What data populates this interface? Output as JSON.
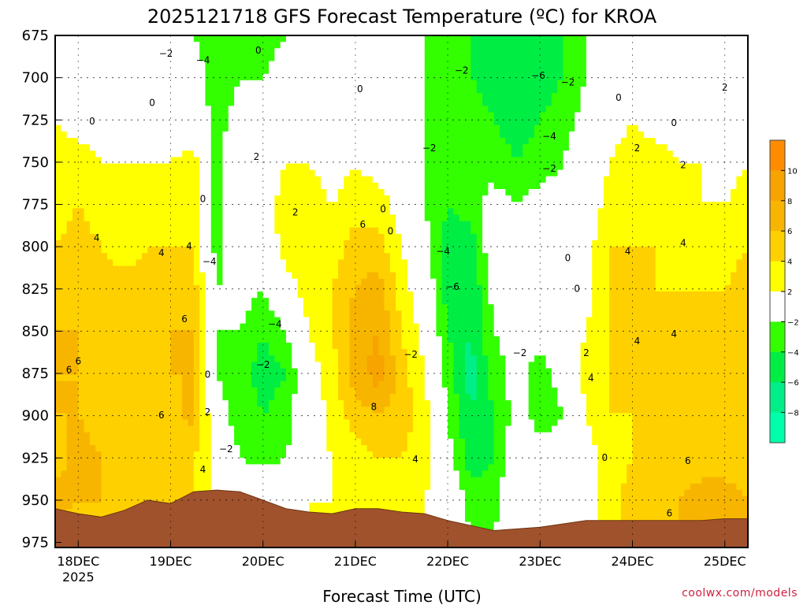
{
  "chart_data": {
    "type": "heatmap",
    "title": "2025121718 GFS Forecast Temperature (ºC) for KROA",
    "xlabel": "Forecast Time (UTC)",
    "ylabel": "",
    "credit": "coolwx.com/models",
    "y_ticks": [
      "675",
      "700",
      "725",
      "750",
      "775",
      "800",
      "825",
      "850",
      "875",
      "900",
      "925",
      "950",
      "975"
    ],
    "y_values": [
      675,
      700,
      725,
      750,
      775,
      800,
      825,
      850,
      875,
      900,
      925,
      950,
      975
    ],
    "ylim": [
      675,
      978
    ],
    "x_ticks": [
      "18DEC",
      "19DEC",
      "20DEC",
      "21DEC",
      "22DEC",
      "23DEC",
      "24DEC",
      "25DEC"
    ],
    "x_tick_day": [
      0,
      1,
      2,
      3,
      4,
      5,
      6,
      7
    ],
    "xlim_days": [
      -0.25,
      7.25
    ],
    "x_year": "2025",
    "colorbar": {
      "labels": [
        "10",
        "8",
        "6",
        "4",
        "2",
        "−2",
        "−4",
        "−6",
        "−8"
      ],
      "bins": [
        {
          "range": "10 to 12",
          "color": "#ff8c00"
        },
        {
          "range": "8 to 10",
          "color": "#f7a400"
        },
        {
          "range": "6 to 8",
          "color": "#f7b500"
        },
        {
          "range": "4 to 6",
          "color": "#ffd000"
        },
        {
          "range": "2 to 4",
          "color": "#ffff00"
        },
        {
          "range": "-2 to 2",
          "color": "#ffffff"
        },
        {
          "range": "-4 to -2",
          "color": "#33ff00"
        },
        {
          "range": "-6 to -4",
          "color": "#00ee44"
        },
        {
          "range": "-8 to -6",
          "color": "#00ee88"
        },
        {
          "range": "-10 to -8",
          "color": "#00ffaa"
        }
      ]
    },
    "terrain_color": "#a0522d",
    "zero_contour_color": "#c0207a",
    "temperature_columns": [
      {
        "day": -0.25,
        "t": [
          -1,
          0,
          2,
          3,
          3,
          4,
          5,
          6,
          6,
          6,
          5,
          7,
          5
        ]
      },
      {
        "day": 0.0,
        "t": [
          -1,
          0,
          1,
          3,
          4,
          5,
          6,
          6,
          6,
          6,
          7,
          6,
          5
        ]
      },
      {
        "day": 0.25,
        "t": [
          -1,
          0,
          1,
          2,
          3,
          4,
          5,
          6,
          5,
          5,
          6,
          6,
          5
        ]
      },
      {
        "day": 0.5,
        "t": [
          -1,
          -1,
          0,
          2,
          2,
          3,
          5,
          5,
          4,
          4,
          5,
          5,
          4
        ]
      },
      {
        "day": 0.75,
        "t": [
          -1,
          -1,
          0,
          2,
          3,
          4,
          5,
          6,
          5,
          4,
          4,
          4,
          4
        ]
      },
      {
        "day": 1.0,
        "t": [
          -1,
          -1,
          0,
          2,
          3,
          4,
          5,
          6,
          6,
          5,
          4,
          4,
          4
        ]
      },
      {
        "day": 1.25,
        "t": [
          -2,
          -1,
          0,
          3,
          3,
          4,
          5,
          6,
          6,
          7,
          4,
          4,
          4
        ]
      },
      {
        "day": 1.5,
        "t": [
          -3,
          -3,
          -3,
          -3,
          -3,
          -3,
          -2,
          -2,
          -2,
          -1,
          1,
          2,
          2
        ]
      },
      {
        "day": 1.75,
        "t": [
          -3,
          -2,
          -1,
          1,
          1,
          0,
          -1,
          -2,
          -3,
          -3,
          -2,
          1,
          1
        ]
      },
      {
        "day": 2.0,
        "t": [
          -3,
          -2,
          -1,
          0,
          1,
          0,
          -2,
          -4,
          -5,
          -4,
          -3,
          1,
          1
        ]
      },
      {
        "day": 2.25,
        "t": [
          -2,
          -1,
          1,
          2,
          3,
          3,
          1,
          -2,
          -4,
          -3,
          -2,
          1,
          1
        ]
      },
      {
        "day": 2.5,
        "t": [
          -2,
          -1,
          0,
          2,
          3,
          3,
          3,
          2,
          1,
          0,
          1,
          2,
          2
        ]
      },
      {
        "day": 2.75,
        "t": [
          -2,
          -1,
          0,
          1,
          2,
          3,
          4,
          4,
          3,
          3,
          2,
          2,
          2
        ]
      },
      {
        "day": 3.0,
        "t": [
          -1,
          0,
          1,
          2,
          3,
          5,
          6,
          7,
          7,
          5,
          3,
          3,
          3
        ]
      },
      {
        "day": 3.25,
        "t": [
          -1,
          0,
          1,
          1,
          3,
          5,
          7,
          8,
          9,
          6,
          4,
          4,
          4
        ]
      },
      {
        "day": 3.5,
        "t": [
          -2,
          -1,
          0,
          0,
          1,
          2,
          3,
          4,
          5,
          5,
          4,
          3,
          3
        ]
      },
      {
        "day": 3.75,
        "t": [
          -2,
          -2,
          -2,
          -2,
          -2,
          -1,
          0,
          1,
          2,
          3,
          3,
          2,
          2
        ]
      },
      {
        "day": 4.0,
        "t": [
          -2,
          -2,
          -3,
          -3,
          -4,
          -5,
          -5,
          -4,
          -3,
          -2,
          -1,
          1,
          1
        ]
      },
      {
        "day": 4.25,
        "t": [
          -4,
          -4,
          -3,
          -2,
          -3,
          -5,
          -6,
          -6,
          -7,
          -6,
          -5,
          -3,
          -2
        ]
      },
      {
        "day": 4.5,
        "t": [
          -5,
          -5,
          -4,
          -3,
          -1,
          0,
          -1,
          -2,
          -3,
          -4,
          -4,
          -3,
          -2
        ]
      },
      {
        "day": 4.75,
        "t": [
          -5,
          -6,
          -5,
          -4,
          -2,
          0,
          0,
          -1,
          -1,
          -1,
          0,
          1,
          1
        ]
      },
      {
        "day": 5.0,
        "t": [
          -5,
          -5,
          -4,
          -3,
          -1,
          0,
          0,
          -1,
          -3,
          -3,
          -1,
          0,
          0
        ]
      },
      {
        "day": 5.25,
        "t": [
          -4,
          -4,
          -3,
          -2,
          -1,
          0,
          1,
          0,
          -1,
          -2,
          -1,
          1,
          1
        ]
      },
      {
        "day": 5.5,
        "t": [
          -2,
          -2,
          -1,
          0,
          0,
          1,
          1,
          2,
          3,
          2,
          1,
          1,
          1
        ]
      },
      {
        "day": 5.75,
        "t": [
          -1,
          -1,
          1,
          2,
          3,
          4,
          4,
          4,
          4,
          4,
          3,
          3,
          3
        ]
      },
      {
        "day": 6.0,
        "t": [
          -1,
          0,
          2,
          3,
          3,
          4,
          5,
          5,
          4,
          4,
          4,
          5,
          5
        ]
      },
      {
        "day": 6.25,
        "t": [
          -2,
          0,
          1,
          3,
          4,
          4,
          4,
          5,
          5,
          5,
          5,
          5,
          5
        ]
      },
      {
        "day": 6.5,
        "t": [
          -1,
          0,
          1,
          2,
          3,
          3,
          4,
          4,
          4,
          4,
          5,
          6,
          6
        ]
      },
      {
        "day": 6.75,
        "t": [
          -1,
          0,
          0,
          2,
          2,
          3,
          4,
          4,
          4,
          4,
          5,
          7,
          7
        ]
      },
      {
        "day": 7.0,
        "t": [
          -1,
          -1,
          0,
          1,
          2,
          3,
          4,
          4,
          4,
          4,
          5,
          7,
          7
        ]
      },
      {
        "day": 7.25,
        "t": [
          -1,
          -1,
          0,
          2,
          3,
          4,
          5,
          4,
          4,
          4,
          5,
          6,
          6
        ]
      }
    ],
    "terrain_surface": [
      {
        "day": -0.25,
        "p": 955
      },
      {
        "day": 0.0,
        "p": 958
      },
      {
        "day": 0.25,
        "p": 960
      },
      {
        "day": 0.5,
        "p": 956
      },
      {
        "day": 0.75,
        "p": 950
      },
      {
        "day": 1.0,
        "p": 952
      },
      {
        "day": 1.25,
        "p": 945
      },
      {
        "day": 1.5,
        "p": 944
      },
      {
        "day": 1.75,
        "p": 945
      },
      {
        "day": 2.0,
        "p": 950
      },
      {
        "day": 2.25,
        "p": 955
      },
      {
        "day": 2.5,
        "p": 957
      },
      {
        "day": 2.75,
        "p": 958
      },
      {
        "day": 3.0,
        "p": 955
      },
      {
        "day": 3.25,
        "p": 955
      },
      {
        "day": 3.5,
        "p": 957
      },
      {
        "day": 3.75,
        "p": 958
      },
      {
        "day": 4.0,
        "p": 962
      },
      {
        "day": 4.25,
        "p": 965
      },
      {
        "day": 4.5,
        "p": 968
      },
      {
        "day": 4.75,
        "p": 967
      },
      {
        "day": 5.0,
        "p": 966
      },
      {
        "day": 5.25,
        "p": 964
      },
      {
        "day": 5.5,
        "p": 962
      },
      {
        "day": 5.75,
        "p": 962
      },
      {
        "day": 6.0,
        "p": 962
      },
      {
        "day": 6.25,
        "p": 962
      },
      {
        "day": 6.5,
        "p": 962
      },
      {
        "day": 6.75,
        "p": 962
      },
      {
        "day": 7.0,
        "p": 961
      },
      {
        "day": 7.25,
        "p": 961
      }
    ],
    "contour_labels": [
      {
        "text": "−2",
        "day": 0.95,
        "p": 686
      },
      {
        "text": "−4",
        "day": 1.35,
        "p": 690
      },
      {
        "text": "0",
        "day": 1.95,
        "p": 684
      },
      {
        "text": "0",
        "day": 3.05,
        "p": 707
      },
      {
        "text": "0",
        "day": 0.8,
        "p": 715
      },
      {
        "text": "0",
        "day": 0.15,
        "p": 726
      },
      {
        "text": "4",
        "day": 0.2,
        "p": 795
      },
      {
        "text": "4",
        "day": 0.9,
        "p": 804
      },
      {
        "text": "4",
        "day": 1.2,
        "p": 800
      },
      {
        "text": "6",
        "day": 1.15,
        "p": 843
      },
      {
        "text": "6",
        "day": 0.0,
        "p": 868
      },
      {
        "text": "6",
        "day": -0.1,
        "p": 873
      },
      {
        "text": "6",
        "day": 0.9,
        "p": 900
      },
      {
        "text": "0",
        "day": 1.35,
        "p": 772
      },
      {
        "text": "−4",
        "day": 1.42,
        "p": 809
      },
      {
        "text": "0",
        "day": 1.4,
        "p": 876
      },
      {
        "text": "2",
        "day": 1.4,
        "p": 898
      },
      {
        "text": "−2",
        "day": 1.6,
        "p": 920
      },
      {
        "text": "4",
        "day": 1.35,
        "p": 932
      },
      {
        "text": "2",
        "day": 1.93,
        "p": 747
      },
      {
        "text": "2",
        "day": 2.35,
        "p": 780
      },
      {
        "text": "−4",
        "day": 2.13,
        "p": 846
      },
      {
        "text": "−2",
        "day": 2.0,
        "p": 870
      },
      {
        "text": "6",
        "day": 3.08,
        "p": 787
      },
      {
        "text": "8",
        "day": 3.2,
        "p": 895
      },
      {
        "text": "4",
        "day": 3.65,
        "p": 926
      },
      {
        "text": "0",
        "day": 3.3,
        "p": 778
      },
      {
        "text": "0",
        "day": 3.38,
        "p": 791
      },
      {
        "text": "−2",
        "day": 3.6,
        "p": 864
      },
      {
        "text": "−2",
        "day": 3.8,
        "p": 742
      },
      {
        "text": "−4",
        "day": 3.95,
        "p": 803
      },
      {
        "text": "−6",
        "day": 4.05,
        "p": 824
      },
      {
        "text": "−2",
        "day": 4.15,
        "p": 696
      },
      {
        "text": "−6",
        "day": 4.98,
        "p": 699
      },
      {
        "text": "−2",
        "day": 5.3,
        "p": 703
      },
      {
        "text": "−4",
        "day": 5.1,
        "p": 735
      },
      {
        "text": "−2",
        "day": 5.1,
        "p": 754
      },
      {
        "text": "0",
        "day": 5.3,
        "p": 807
      },
      {
        "text": "0",
        "day": 5.4,
        "p": 825
      },
      {
        "text": "−2",
        "day": 4.78,
        "p": 863
      },
      {
        "text": "2",
        "day": 5.5,
        "p": 863
      },
      {
        "text": "4",
        "day": 5.55,
        "p": 878
      },
      {
        "text": "0",
        "day": 5.7,
        "p": 925
      },
      {
        "text": "0",
        "day": 5.85,
        "p": 712
      },
      {
        "text": "2",
        "day": 6.05,
        "p": 742
      },
      {
        "text": "2",
        "day": 6.55,
        "p": 752
      },
      {
        "text": "0",
        "day": 6.45,
        "p": 727
      },
      {
        "text": "4",
        "day": 5.95,
        "p": 803
      },
      {
        "text": "4",
        "day": 6.55,
        "p": 798
      },
      {
        "text": "4",
        "day": 6.05,
        "p": 856
      },
      {
        "text": "4",
        "day": 6.45,
        "p": 852
      },
      {
        "text": "2",
        "day": 7.0,
        "p": 706
      },
      {
        "text": "6",
        "day": 6.6,
        "p": 927
      },
      {
        "text": "6",
        "day": 6.4,
        "p": 958
      }
    ]
  }
}
